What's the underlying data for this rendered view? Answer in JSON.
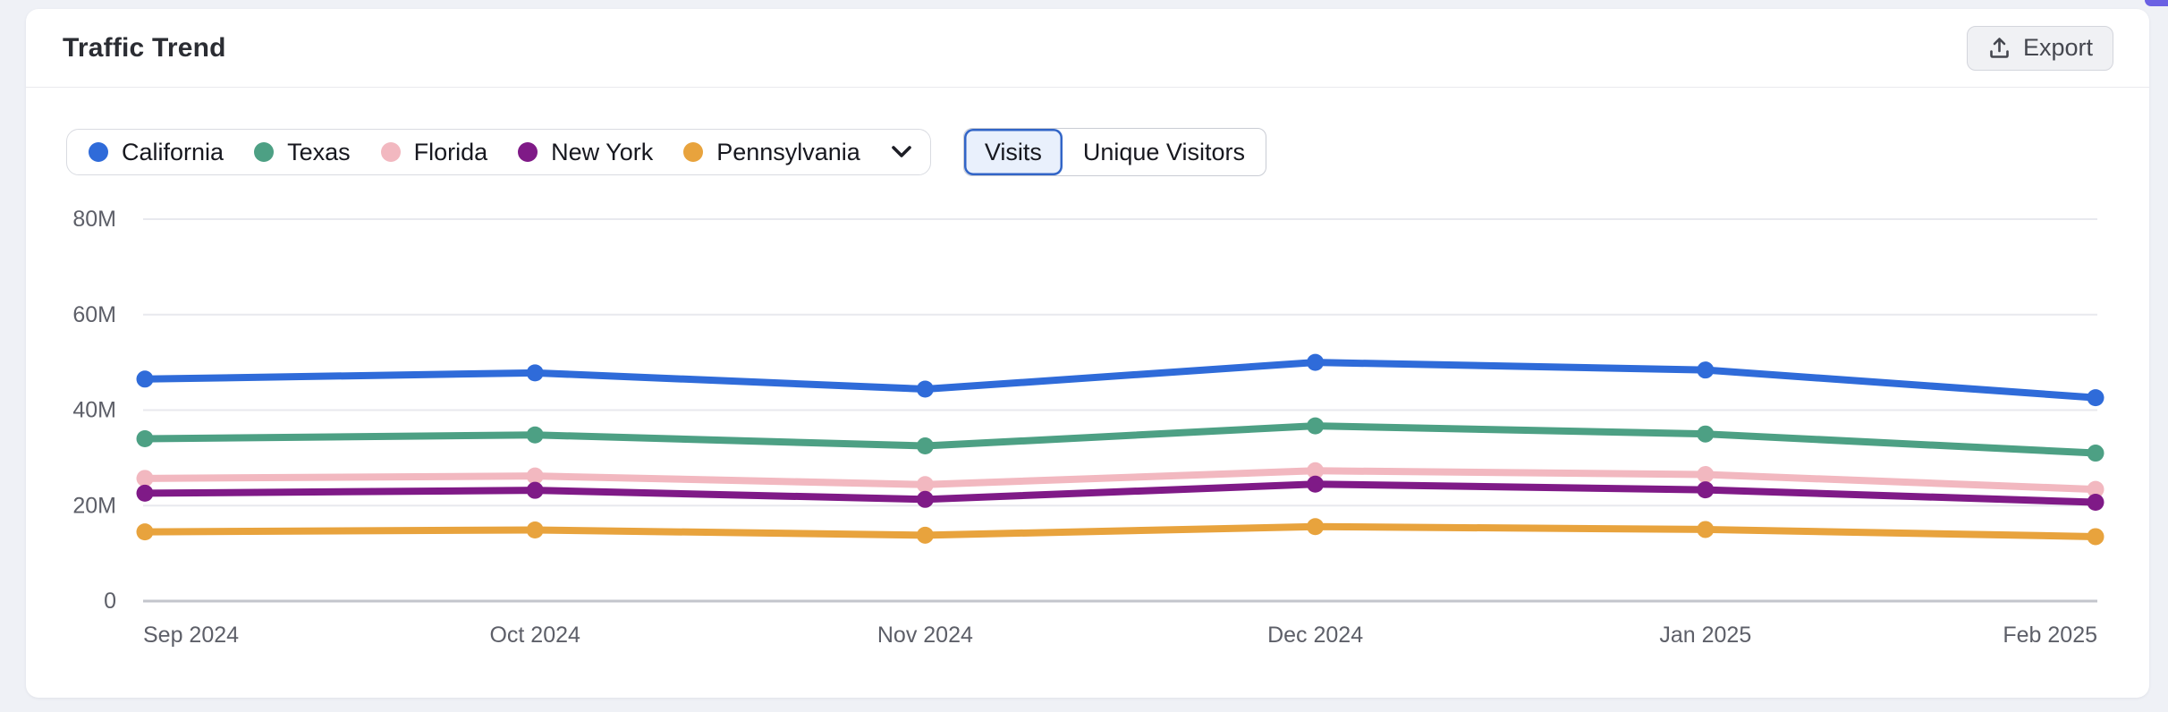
{
  "header": {
    "title": "Traffic Trend",
    "export_button": {
      "label": "Export",
      "icon": "upload-icon"
    }
  },
  "legend": {
    "items": [
      {
        "label": "California",
        "color": "#2f6bd9"
      },
      {
        "label": "Texas",
        "color": "#4da084"
      },
      {
        "label": "Florida",
        "color": "#f2b8c0"
      },
      {
        "label": "New York",
        "color": "#7f1a87"
      },
      {
        "label": "Pennsylvania",
        "color": "#e8a33d"
      }
    ],
    "expand_icon": "chevron-down"
  },
  "metric_toggle": {
    "options": [
      {
        "label": "Visits",
        "selected": true
      },
      {
        "label": "Unique Visitors",
        "selected": false
      }
    ]
  },
  "chart_data": {
    "type": "line",
    "title": "Traffic Trend",
    "unit": "M",
    "x": [
      "Sep 2024",
      "Oct 2024",
      "Nov 2024",
      "Dec 2024",
      "Jan 2025",
      "Feb 2025"
    ],
    "series": [
      {
        "name": "California",
        "color": "#2f6bd9",
        "values": [
          46.5,
          47.8,
          44.4,
          50.0,
          48.4,
          42.6
        ]
      },
      {
        "name": "Texas",
        "color": "#4da084",
        "values": [
          34.0,
          34.8,
          32.5,
          36.7,
          35.0,
          31.0
        ]
      },
      {
        "name": "Florida",
        "color": "#f2b8c0",
        "values": [
          25.7,
          26.2,
          24.4,
          27.3,
          26.5,
          23.4
        ]
      },
      {
        "name": "New York",
        "color": "#7f1a87",
        "values": [
          22.6,
          23.2,
          21.3,
          24.5,
          23.3,
          20.7
        ]
      },
      {
        "name": "Pennsylvania",
        "color": "#e8a33d",
        "values": [
          14.5,
          14.9,
          13.8,
          15.6,
          15.0,
          13.5
        ]
      }
    ],
    "y_ticks": [
      {
        "value": 80,
        "label": "80M"
      },
      {
        "value": 60,
        "label": "60M"
      },
      {
        "value": 40,
        "label": "40M"
      },
      {
        "value": 20,
        "label": "20M"
      },
      {
        "value": 0,
        "label": "0"
      }
    ],
    "ylim": [
      0,
      80
    ],
    "grid": true,
    "legend_position": "top-left",
    "selected_metric": "Visits"
  },
  "colors": {
    "page_background": "#eff1f6",
    "card_background": "#ffffff",
    "gridline": "#e8e9ee",
    "axis_line": "#c3c5cc",
    "axis_label": "#5d5f68",
    "toggle_selected_border": "#3265c7",
    "toggle_selected_background": "#e9f0fc"
  }
}
